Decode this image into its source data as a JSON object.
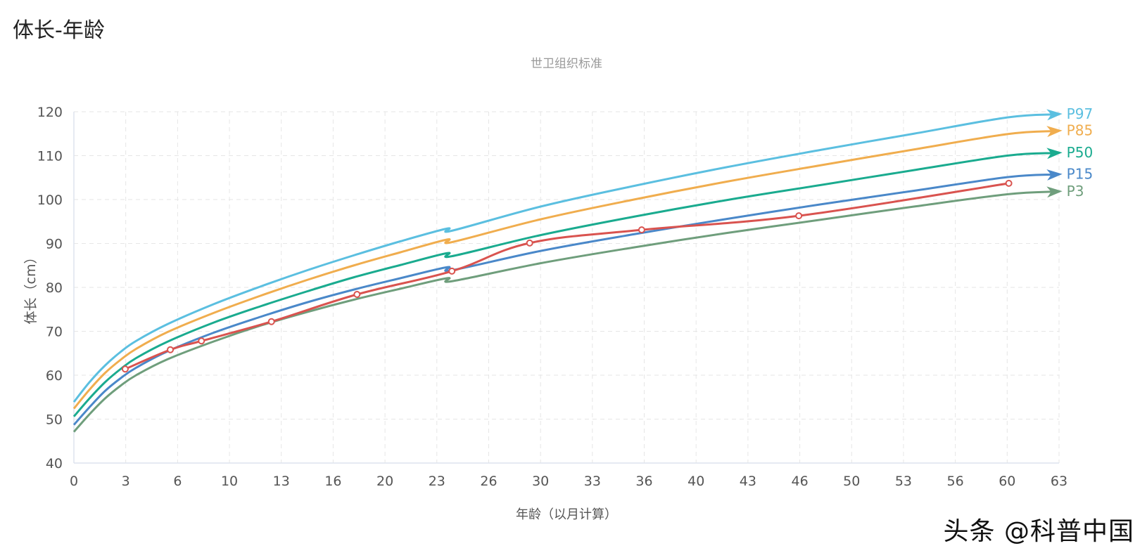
{
  "page": {
    "title": "体长-年龄",
    "watermark": "头条 @科普中国"
  },
  "chart_data": {
    "type": "line",
    "title": "世卫组织标准",
    "xlabel": "年龄（以月计算）",
    "ylabel": "体长（cm）",
    "xlim": [
      0,
      63.33
    ],
    "ylim": [
      40,
      120
    ],
    "xticks": [
      "0",
      "3",
      "6",
      "10",
      "13",
      "16",
      "20",
      "23",
      "26",
      "30",
      "33",
      "36",
      "40",
      "43",
      "46",
      "50",
      "53",
      "56",
      "60",
      "63"
    ],
    "yticks": [
      40,
      50,
      60,
      70,
      80,
      90,
      100,
      110,
      120
    ],
    "grid": true,
    "legend": "end-of-line labels",
    "reference_x": [
      0,
      1,
      2,
      3,
      4,
      6,
      9,
      12,
      15,
      18,
      21,
      24,
      24.3,
      30,
      36,
      42,
      48,
      54,
      60,
      63
    ],
    "series": [
      {
        "name": "P97",
        "color": "#5bbfe0",
        "values": [
          53.9,
          58.4,
          62.2,
          65.3,
          67.8,
          71.6,
          76.2,
          80.2,
          83.9,
          87.3,
          90.5,
          93.4,
          92.9,
          98.4,
          103.1,
          107.4,
          111.3,
          115.0,
          118.7,
          119.4
        ]
      },
      {
        "name": "P85",
        "color": "#f0ad4e",
        "values": [
          52.4,
          56.7,
          60.5,
          63.5,
          66.0,
          69.8,
          74.2,
          78.1,
          81.7,
          85.0,
          88.0,
          90.9,
          90.3,
          95.5,
          100.0,
          104.1,
          107.8,
          111.4,
          114.9,
          115.6
        ]
      },
      {
        "name": "P50",
        "color": "#1aab8f",
        "values": [
          50.6,
          54.7,
          58.4,
          61.4,
          63.9,
          67.6,
          72.0,
          75.7,
          79.1,
          82.3,
          85.1,
          87.8,
          87.1,
          91.9,
          96.1,
          99.9,
          103.3,
          106.7,
          110.0,
          110.6
        ]
      },
      {
        "name": "P15",
        "color": "#4a88c9",
        "values": [
          48.7,
          52.7,
          56.4,
          59.3,
          61.7,
          65.4,
          69.7,
          73.3,
          76.6,
          79.5,
          82.1,
          84.6,
          83.9,
          88.3,
          92.1,
          95.6,
          98.9,
          102.0,
          105.1,
          105.7
        ]
      },
      {
        "name": "P3",
        "color": "#6f9e7c",
        "values": [
          47.1,
          51.1,
          54.7,
          57.6,
          60.0,
          63.6,
          67.7,
          71.3,
          74.4,
          77.2,
          79.7,
          82.1,
          81.4,
          85.5,
          89.1,
          92.4,
          95.4,
          98.4,
          101.2,
          101.8
        ]
      }
    ],
    "measured": {
      "color": "#d9534f",
      "points": [
        [
          3.3,
          61.4
        ],
        [
          6.2,
          65.8
        ],
        [
          8.2,
          67.8
        ],
        [
          12.7,
          72.2
        ],
        [
          18.2,
          78.4
        ],
        [
          24.3,
          83.7
        ],
        [
          29.3,
          90.1
        ],
        [
          36.5,
          93.1
        ],
        [
          46.6,
          96.3
        ],
        [
          60.1,
          103.7
        ]
      ]
    }
  }
}
